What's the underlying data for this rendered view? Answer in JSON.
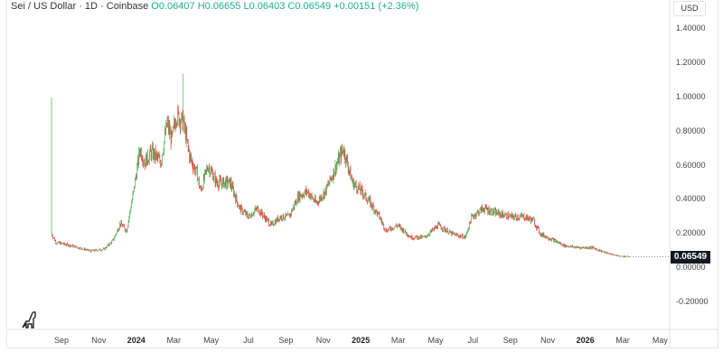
{
  "legend": {
    "symbol": "Sei / US Dollar · 1D · Coinbase",
    "open": "O0.06407",
    "high": "H0.06655",
    "low": "L0.06403",
    "close": "C0.06549",
    "change": "+0.00151 (+2.36%)"
  },
  "currency": "USD",
  "last_price": "0.06549",
  "colors": {
    "up": "#4caf50",
    "down": "#e53935",
    "spike": "#26c626"
  },
  "chart_data": {
    "type": "candlestick",
    "title": "Sei / US Dollar · 1D · Coinbase",
    "ylabel": "USD",
    "ylim": [
      -0.3,
      1.55
    ],
    "y_ticks": [
      "1.40000",
      "1.20000",
      "1.00000",
      "0.80000",
      "0.60000",
      "0.40000",
      "0.20000",
      "0.00000",
      "-0.20000"
    ],
    "y_tick_values": [
      1.4,
      1.2,
      1.0,
      0.8,
      0.6,
      0.4,
      0.2,
      0.0,
      -0.2
    ],
    "x_ticks": [
      {
        "label": "Sep",
        "t": 0
      },
      {
        "label": "Nov",
        "t": 2
      },
      {
        "label": "2024",
        "t": 4,
        "bold": true
      },
      {
        "label": "Mar",
        "t": 6
      },
      {
        "label": "May",
        "t": 8
      },
      {
        "label": "Jul",
        "t": 10
      },
      {
        "label": "Sep",
        "t": 12
      },
      {
        "label": "Nov",
        "t": 14
      },
      {
        "label": "2025",
        "t": 16,
        "bold": true
      },
      {
        "label": "Mar",
        "t": 18
      },
      {
        "label": "May",
        "t": 20
      },
      {
        "label": "Jul",
        "t": 22
      },
      {
        "label": "Sep",
        "t": 24
      },
      {
        "label": "Nov",
        "t": 26
      },
      {
        "label": "2026",
        "t": 28,
        "bold": true
      },
      {
        "label": "Mar",
        "t": 30
      },
      {
        "label": "May",
        "t": 32
      }
    ],
    "x_unit": "months since 2023-09-01",
    "price_path": [
      [
        -0.53,
        0.2
      ],
      [
        -0.29,
        0.15
      ],
      [
        0.58,
        0.13
      ],
      [
        1.55,
        0.1
      ],
      [
        2.27,
        0.11
      ],
      [
        2.75,
        0.16
      ],
      [
        3.14,
        0.26
      ],
      [
        3.48,
        0.22
      ],
      [
        3.86,
        0.45
      ],
      [
        4.2,
        0.7
      ],
      [
        4.44,
        0.62
      ],
      [
        4.83,
        0.68
      ],
      [
        5.31,
        0.62
      ],
      [
        5.65,
        0.85
      ],
      [
        5.89,
        0.75
      ],
      [
        6.14,
        0.9
      ],
      [
        6.52,
        0.85
      ],
      [
        6.86,
        0.65
      ],
      [
        7.25,
        0.55
      ],
      [
        7.44,
        0.45
      ],
      [
        7.83,
        0.6
      ],
      [
        8.31,
        0.5
      ],
      [
        9.03,
        0.5
      ],
      [
        9.52,
        0.35
      ],
      [
        10,
        0.3
      ],
      [
        10.48,
        0.35
      ],
      [
        11.21,
        0.25
      ],
      [
        11.69,
        0.3
      ],
      [
        12.17,
        0.3
      ],
      [
        12.66,
        0.42
      ],
      [
        13.14,
        0.45
      ],
      [
        13.62,
        0.38
      ],
      [
        14.11,
        0.45
      ],
      [
        14.69,
        0.6
      ],
      [
        15.07,
        0.7
      ],
      [
        15.56,
        0.5
      ],
      [
        16.04,
        0.45
      ],
      [
        16.52,
        0.38
      ],
      [
        17,
        0.3
      ],
      [
        17.34,
        0.22
      ],
      [
        17.97,
        0.25
      ],
      [
        18.7,
        0.18
      ],
      [
        19.42,
        0.18
      ],
      [
        20.14,
        0.25
      ],
      [
        20.87,
        0.2
      ],
      [
        21.59,
        0.18
      ],
      [
        21.93,
        0.3
      ],
      [
        22.56,
        0.35
      ],
      [
        23.29,
        0.32
      ],
      [
        24.01,
        0.3
      ],
      [
        24.73,
        0.3
      ],
      [
        25.22,
        0.28
      ],
      [
        25.6,
        0.2
      ],
      [
        26.18,
        0.17
      ],
      [
        26.91,
        0.13
      ],
      [
        27.63,
        0.12
      ],
      [
        28.36,
        0.12
      ],
      [
        29.08,
        0.09
      ],
      [
        29.8,
        0.07
      ],
      [
        30.39,
        0.0655
      ]
    ],
    "launch_spike_high": 1.0,
    "all_time_high": 1.14,
    "last_close": 0.06549
  }
}
